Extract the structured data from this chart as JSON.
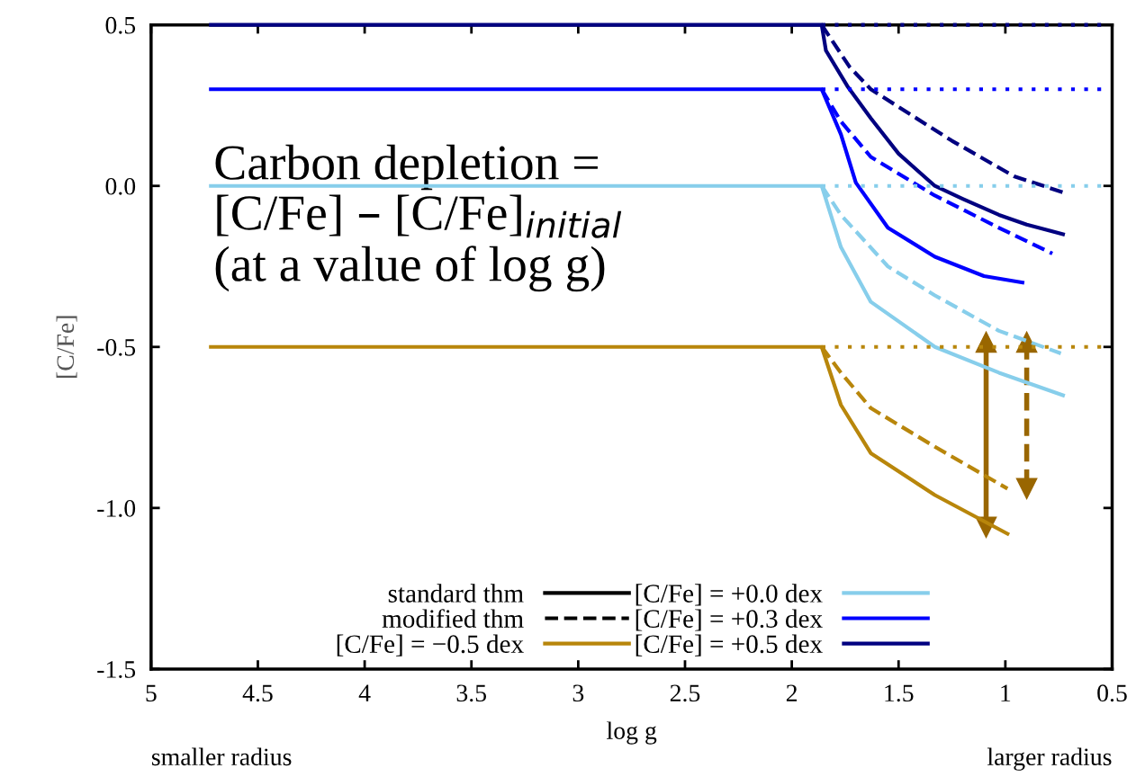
{
  "chart_data": {
    "type": "line",
    "xlabel": "log g",
    "ylabel": "[C/Fe]",
    "annotations": [
      "Carbon depletion =\n[C/Fe] – [C/Fe]$_{initial}$\n(at a value of log g)",
      "smaller radius",
      "larger radius"
    ],
    "xlim": [
      5,
      0.5
    ],
    "xticks": [
      5,
      4.5,
      4,
      3.5,
      3,
      2.5,
      2,
      1.5,
      1,
      0.5
    ],
    "ylim": [
      -1.5,
      0.5
    ],
    "yticks": [
      {
        "value": -1.5,
        "label": "-1.5"
      },
      {
        "value": -1.0,
        "label": "-1.0"
      },
      {
        "value": -0.5,
        "label": "-0.5"
      },
      {
        "value": 0,
        "label": "0.0"
      },
      0.5
    ],
    "grid": false,
    "legend": "bottom",
    "series": [
      {
        "name": "standard thm",
        "color": "#000000"
      },
      {
        "name": "modified thm",
        "color": "#000000",
        "line_style": "dashed"
      },
      {
        "name": "[C/Fe] = −0.5 dex",
        "color": "#b8860b",
        "x": [
          4.72,
          1.86,
          1.77,
          1.63,
          1.33,
          0.99
        ],
        "values": [
          -0.5,
          -0.5,
          -0.68,
          -0.83,
          -0.96,
          -1.08
        ]
      },
      {
        "name": "[C/Fe] = +0.0 dex",
        "color": "#87ceeb",
        "x": [
          4.72,
          1.86,
          1.77,
          1.63,
          1.33,
          1.03,
          0.73
        ],
        "values": [
          0,
          0,
          -0.19,
          -0.36,
          -0.5,
          -0.58,
          -0.65
        ]
      },
      {
        "name": "[C/Fe] = +0.3 dex",
        "color": "#0000ff",
        "x": [
          4.72,
          1.86,
          1.77,
          1.7,
          1.55,
          1.33,
          1.1,
          0.92
        ],
        "values": [
          0.3,
          0.3,
          0.16,
          0.01,
          -0.13,
          -0.22,
          -0.28,
          -0.3
        ]
      },
      {
        "name": "[C/Fe] = +0.5 dex",
        "color": "#000080",
        "x": [
          4.72,
          1.86,
          1.84,
          1.74,
          1.63,
          1.5,
          1.33,
          1.2,
          1.03,
          0.9,
          0.73
        ],
        "values": [
          0.5,
          0.5,
          0.42,
          0.31,
          0.21,
          0.1,
          0.0,
          -0.04,
          -0.09,
          -0.12,
          -0.15
        ]
      },
      {
        "color": "#b8860b",
        "line_style": "dashed",
        "x": [
          1.86,
          1.77,
          1.63,
          1.33,
          0.99
        ],
        "values": [
          -0.5,
          -0.58,
          -0.69,
          -0.81,
          -0.94
        ]
      },
      {
        "color": "#87ceeb",
        "line_style": "dashed",
        "x": [
          1.86,
          1.77,
          1.55,
          1.33,
          1.03,
          0.74
        ],
        "values": [
          0,
          -0.09,
          -0.25,
          -0.34,
          -0.45,
          -0.52
        ]
      },
      {
        "color": "#0000ff",
        "line_style": "dashed",
        "x": [
          1.86,
          1.77,
          1.63,
          1.33,
          1.03,
          0.78
        ],
        "values": [
          0.3,
          0.2,
          0.09,
          -0.03,
          -0.13,
          -0.21
        ]
      },
      {
        "color": "#000080",
        "line_style": "dashed",
        "x": [
          1.86,
          1.73,
          1.63,
          1.25,
          0.96,
          0.73
        ],
        "values": [
          0.5,
          0.37,
          0.3,
          0.14,
          0.03,
          -0.02
        ]
      },
      {
        "color": "#b8860b",
        "line_style": "dotted",
        "x": [
          1.86,
          0.55
        ],
        "values": [
          -0.5,
          -0.5
        ]
      },
      {
        "color": "#87ceeb",
        "line_style": "dotted",
        "x": [
          1.86,
          0.55
        ],
        "values": [
          0,
          0
        ]
      },
      {
        "color": "#0000ff",
        "line_style": "dotted",
        "x": [
          1.86,
          0.55
        ],
        "values": [
          0.3,
          0.3
        ]
      },
      {
        "color": "#000080",
        "line_style": "dotted",
        "x": [
          1.86,
          0.55
        ],
        "values": [
          0.5,
          0.5
        ]
      },
      {
        "color": "#996600",
        "marker": "triangle",
        "x": [
          1.09,
          1.09
        ],
        "values": [
          -0.485,
          -1.06
        ]
      },
      {
        "color": "#996600",
        "marker": "triangle",
        "line_style": "dashed",
        "x": [
          0.9,
          0.9
        ],
        "values": [
          -0.485,
          -0.94
        ]
      }
    ]
  }
}
